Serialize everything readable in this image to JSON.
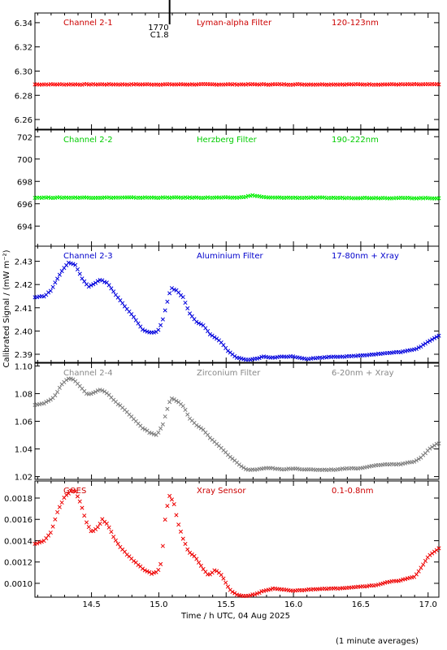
{
  "footer_note": "(1 minute averages)",
  "shared_xlabel": "Time / h UTC, 04 Aug 2025",
  "shared_ylabel": "Calibrated Signal / (mW m⁻²)",
  "chart_data": [
    {
      "type": "scatter",
      "panel": "channel-2-1",
      "labels": [
        "Channel 2-1",
        "Lyman-alpha Filter",
        "120-123nm"
      ],
      "label_color": "#cc0000",
      "marker_color": "#ff0000",
      "ylim": [
        6.252,
        6.348
      ],
      "yticks": [
        6.26,
        6.28,
        6.3,
        6.32,
        6.34
      ],
      "ytick_labels": [
        "6.26",
        "6.28",
        "6.30",
        "6.32",
        "6.34"
      ],
      "xlim": [
        14.08,
        17.08
      ],
      "xticks": [
        14.5,
        15.0,
        15.5,
        16.0,
        16.5,
        17.0
      ],
      "xtick_labels": [
        "14.5",
        "15.0",
        "15.5",
        "16.0",
        "16.5",
        "17.0"
      ],
      "flare_marker": {
        "x": 15.08,
        "class": "C1.8",
        "time": "1770"
      },
      "series_points": [
        [
          14.08,
          6.289
        ],
        [
          17.08,
          6.289
        ]
      ],
      "marker": "x"
    },
    {
      "type": "scatter",
      "panel": "channel-2-2",
      "labels": [
        "Channel 2-2",
        "Herzberg Filter",
        "190-222nm"
      ],
      "label_color": "#00cc00",
      "marker_color": "#00ee00",
      "ylim": [
        692.2,
        702.6
      ],
      "yticks": [
        694,
        696,
        698,
        700,
        702
      ],
      "ytick_labels": [
        "694",
        "696",
        "698",
        "700",
        "702"
      ],
      "xlim": [
        14.08,
        17.08
      ],
      "xticks": [
        14.5,
        15.0,
        15.5,
        16.0,
        16.5,
        17.0
      ],
      "xtick_labels": [
        "14.5",
        "15.0",
        "15.5",
        "16.0",
        "16.5",
        "17.0"
      ],
      "series_points": [
        [
          14.08,
          696.55
        ],
        [
          15.6,
          696.55
        ],
        [
          15.7,
          696.75
        ],
        [
          15.8,
          696.55
        ],
        [
          17.08,
          696.5
        ]
      ],
      "marker": "x"
    },
    {
      "type": "scatter",
      "panel": "channel-2-3",
      "labels": [
        "Channel 2-3",
        "Aluminium Filter",
        "17-80nm + Xray"
      ],
      "label_color": "#0000cc",
      "marker_color": "#0000dd",
      "ylim": [
        2.3865,
        2.4365
      ],
      "yticks": [
        2.39,
        2.4,
        2.41,
        2.42,
        2.43
      ],
      "ytick_labels": [
        "2.39",
        "2.40",
        "2.41",
        "2.42",
        "2.43"
      ],
      "xlim": [
        14.08,
        17.08
      ],
      "xticks": [
        14.5,
        15.0,
        15.5,
        16.0,
        16.5,
        17.0
      ],
      "xtick_labels": [
        "14.5",
        "15.0",
        "15.5",
        "16.0",
        "16.5",
        "17.0"
      ],
      "series_points": [
        [
          14.08,
          2.4145
        ],
        [
          14.15,
          2.415
        ],
        [
          14.2,
          2.4175
        ],
        [
          14.27,
          2.425
        ],
        [
          14.33,
          2.4295
        ],
        [
          14.38,
          2.4285
        ],
        [
          14.43,
          2.4225
        ],
        [
          14.48,
          2.419
        ],
        [
          14.52,
          2.4205
        ],
        [
          14.57,
          2.422
        ],
        [
          14.62,
          2.4205
        ],
        [
          14.68,
          2.4155
        ],
        [
          14.75,
          2.4105
        ],
        [
          14.82,
          2.4055
        ],
        [
          14.88,
          2.4005
        ],
        [
          14.93,
          2.3995
        ],
        [
          14.98,
          2.3995
        ],
        [
          15.0,
          2.4005
        ],
        [
          15.03,
          2.405
        ],
        [
          15.06,
          2.412
        ],
        [
          15.09,
          2.4185
        ],
        [
          15.13,
          2.4175
        ],
        [
          15.18,
          2.4145
        ],
        [
          15.23,
          2.4075
        ],
        [
          15.28,
          2.404
        ],
        [
          15.33,
          2.4025
        ],
        [
          15.38,
          2.3985
        ],
        [
          15.45,
          2.396
        ],
        [
          15.52,
          2.391
        ],
        [
          15.58,
          2.3885
        ],
        [
          15.65,
          2.3875
        ],
        [
          15.72,
          2.388
        ],
        [
          15.78,
          2.389
        ],
        [
          15.85,
          2.3885
        ],
        [
          15.92,
          2.389
        ],
        [
          16.0,
          2.389
        ],
        [
          16.1,
          2.388
        ],
        [
          16.2,
          2.3885
        ],
        [
          16.3,
          2.389
        ],
        [
          16.4,
          2.389
        ],
        [
          16.5,
          2.3895
        ],
        [
          16.6,
          2.39
        ],
        [
          16.7,
          2.3905
        ],
        [
          16.8,
          2.391
        ],
        [
          16.85,
          2.3915
        ],
        [
          16.9,
          2.392
        ],
        [
          16.95,
          2.3935
        ],
        [
          17.0,
          2.3955
        ],
        [
          17.05,
          2.397
        ],
        [
          17.08,
          2.398
        ]
      ],
      "marker": "x"
    },
    {
      "type": "scatter",
      "panel": "channel-2-4",
      "labels": [
        "Channel 2-4",
        "Zirconium Filter",
        "6-20nm + Xray"
      ],
      "label_color": "#888888",
      "marker_color": "#7a7a7a",
      "ylim": [
        1.018,
        1.102
      ],
      "yticks": [
        1.02,
        1.04,
        1.06,
        1.08,
        1.1
      ],
      "ytick_labels": [
        "1.02",
        "1.04",
        "1.06",
        "1.08",
        "1.10"
      ],
      "xlim": [
        14.08,
        17.08
      ],
      "xticks": [
        14.5,
        15.0,
        15.5,
        16.0,
        16.5,
        17.0
      ],
      "xtick_labels": [
        "14.5",
        "15.0",
        "15.5",
        "16.0",
        "16.5",
        "17.0"
      ],
      "series_points": [
        [
          14.08,
          1.072
        ],
        [
          14.15,
          1.073
        ],
        [
          14.22,
          1.077
        ],
        [
          14.28,
          1.087
        ],
        [
          14.33,
          1.091
        ],
        [
          14.37,
          1.09
        ],
        [
          14.42,
          1.085
        ],
        [
          14.47,
          1.079
        ],
        [
          14.52,
          1.081
        ],
        [
          14.57,
          1.083
        ],
        [
          14.62,
          1.08
        ],
        [
          14.68,
          1.074
        ],
        [
          14.75,
          1.068
        ],
        [
          14.82,
          1.061
        ],
        [
          14.88,
          1.055
        ],
        [
          14.93,
          1.052
        ],
        [
          14.98,
          1.05
        ],
        [
          15.0,
          1.052
        ],
        [
          15.03,
          1.058
        ],
        [
          15.06,
          1.068
        ],
        [
          15.09,
          1.077
        ],
        [
          15.13,
          1.075
        ],
        [
          15.18,
          1.071
        ],
        [
          15.23,
          1.062
        ],
        [
          15.28,
          1.057
        ],
        [
          15.33,
          1.054
        ],
        [
          15.38,
          1.048
        ],
        [
          15.45,
          1.042
        ],
        [
          15.52,
          1.035
        ],
        [
          15.58,
          1.03
        ],
        [
          15.65,
          1.025
        ],
        [
          15.72,
          1.025
        ],
        [
          15.78,
          1.026
        ],
        [
          15.85,
          1.026
        ],
        [
          15.92,
          1.025
        ],
        [
          16.0,
          1.026
        ],
        [
          16.1,
          1.025
        ],
        [
          16.2,
          1.025
        ],
        [
          16.3,
          1.025
        ],
        [
          16.4,
          1.026
        ],
        [
          16.5,
          1.026
        ],
        [
          16.6,
          1.028
        ],
        [
          16.7,
          1.029
        ],
        [
          16.8,
          1.029
        ],
        [
          16.85,
          1.03
        ],
        [
          16.9,
          1.031
        ],
        [
          16.95,
          1.034
        ],
        [
          17.0,
          1.039
        ],
        [
          17.05,
          1.043
        ],
        [
          17.08,
          1.044
        ]
      ],
      "marker": "x"
    },
    {
      "type": "scatter",
      "panel": "goes",
      "labels": [
        "GOES",
        "Xray Sensor",
        "0.1-0.8nm"
      ],
      "label_color": "#cc0000",
      "marker_color": "#ee0000",
      "ylim": [
        0.00087,
        0.00196
      ],
      "yticks": [
        0.001,
        0.0012,
        0.0014,
        0.0016,
        0.0018
      ],
      "ytick_labels": [
        "0.0010",
        "0.0012",
        "0.0014",
        "0.0016",
        "0.0018"
      ],
      "xlim": [
        14.08,
        17.08
      ],
      "xticks": [
        14.5,
        15.0,
        15.5,
        16.0,
        16.5,
        17.0
      ],
      "xtick_labels": [
        "14.5",
        "15.0",
        "15.5",
        "16.0",
        "16.5",
        "17.0"
      ],
      "series_points": [
        [
          14.08,
          0.00137
        ],
        [
          14.15,
          0.0014
        ],
        [
          14.2,
          0.00148
        ],
        [
          14.25,
          0.00168
        ],
        [
          14.3,
          0.00181
        ],
        [
          14.35,
          0.00187
        ],
        [
          14.38,
          0.00186
        ],
        [
          14.42,
          0.00175
        ],
        [
          14.46,
          0.00158
        ],
        [
          14.5,
          0.00148
        ],
        [
          14.55,
          0.00153
        ],
        [
          14.58,
          0.0016
        ],
        [
          14.62,
          0.00155
        ],
        [
          14.67,
          0.00142
        ],
        [
          14.72,
          0.00133
        ],
        [
          14.78,
          0.00125
        ],
        [
          14.85,
          0.00117
        ],
        [
          14.9,
          0.00112
        ],
        [
          14.95,
          0.00109
        ],
        [
          14.99,
          0.00111
        ],
        [
          15.01,
          0.00115
        ],
        [
          15.03,
          0.00135
        ],
        [
          15.05,
          0.00165
        ],
        [
          15.08,
          0.00182
        ],
        [
          15.11,
          0.00176
        ],
        [
          15.14,
          0.00158
        ],
        [
          15.18,
          0.00142
        ],
        [
          15.22,
          0.0013
        ],
        [
          15.27,
          0.00125
        ],
        [
          15.32,
          0.00115
        ],
        [
          15.37,
          0.00107
        ],
        [
          15.42,
          0.00113
        ],
        [
          15.47,
          0.00107
        ],
        [
          15.52,
          0.00095
        ],
        [
          15.58,
          0.00089
        ],
        [
          15.65,
          0.00088
        ],
        [
          15.72,
          0.0009
        ],
        [
          15.78,
          0.00093
        ],
        [
          15.85,
          0.00095
        ],
        [
          15.92,
          0.00094
        ],
        [
          16.0,
          0.00093
        ],
        [
          16.1,
          0.00094
        ],
        [
          16.2,
          0.00095
        ],
        [
          16.3,
          0.00095
        ],
        [
          16.4,
          0.00096
        ],
        [
          16.5,
          0.00097
        ],
        [
          16.6,
          0.00098
        ],
        [
          16.7,
          0.00101
        ],
        [
          16.8,
          0.00103
        ],
        [
          16.9,
          0.00106
        ],
        [
          16.95,
          0.00115
        ],
        [
          17.0,
          0.00125
        ],
        [
          17.05,
          0.0013
        ],
        [
          17.08,
          0.00133
        ]
      ],
      "marker": "x"
    }
  ]
}
